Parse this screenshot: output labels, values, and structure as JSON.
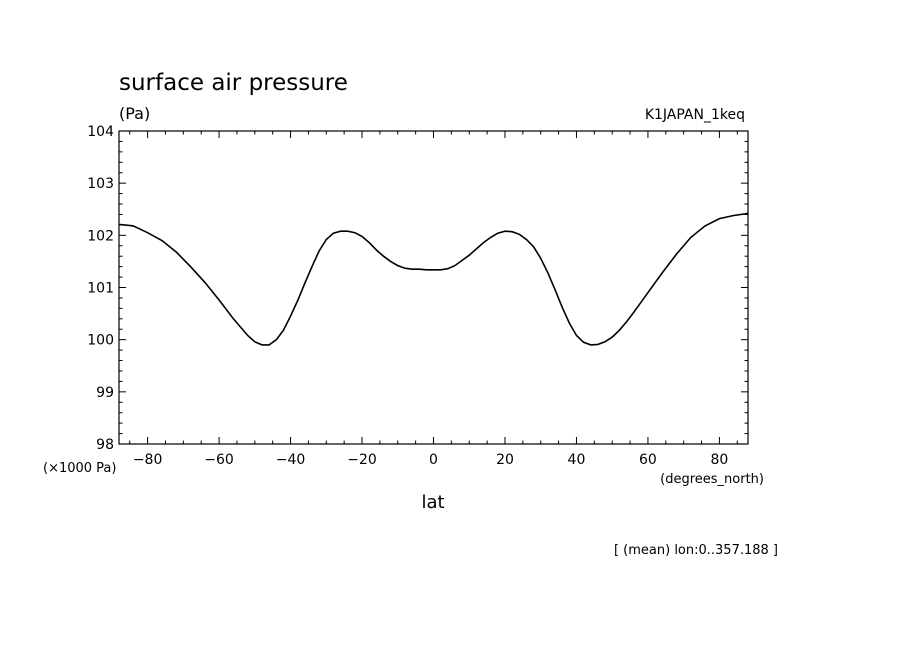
{
  "chart_data": {
    "type": "line",
    "title": "surface air pressure",
    "units": "(Pa)",
    "scale_note": "(×1000 Pa)",
    "dataset_label": "K1JAPAN_1keq",
    "xlabel": "lat",
    "xunits": "(degrees_north)",
    "footnote": "[ (mean) lon:0..357.188 ]",
    "xlim": [
      -88,
      88
    ],
    "ylim": [
      98,
      104
    ],
    "xticks": [
      -80,
      -60,
      -40,
      -20,
      0,
      20,
      40,
      60,
      80
    ],
    "xtick_labels": [
      "−80",
      "−60",
      "−40",
      "−20",
      "0",
      "20",
      "40",
      "60",
      "80"
    ],
    "yticks": [
      98,
      99,
      100,
      101,
      102,
      103,
      104
    ],
    "ytick_labels": [
      "98",
      "99",
      "100",
      "101",
      "102",
      "103",
      "104"
    ],
    "grid": false,
    "series": [
      {
        "x": [
          -88,
          -84,
          -80,
          -76,
          -72,
          -68,
          -64,
          -60,
          -56,
          -52,
          -50,
          -48,
          -46,
          -44,
          -42,
          -40,
          -38,
          -36,
          -34,
          -32,
          -30,
          -28,
          -26,
          -24,
          -22,
          -20,
          -18,
          -16,
          -14,
          -12,
          -10,
          -8,
          -6,
          -4,
          -2,
          0,
          2,
          4,
          6,
          8,
          10,
          12,
          14,
          16,
          18,
          20,
          22,
          24,
          26,
          28,
          30,
          32,
          34,
          36,
          38,
          40,
          42,
          44,
          46,
          48,
          50,
          52,
          54,
          56,
          60,
          64,
          68,
          72,
          76,
          80,
          84,
          88
        ],
        "y": [
          102.21,
          102.18,
          102.05,
          101.9,
          101.68,
          101.4,
          101.1,
          100.76,
          100.4,
          100.08,
          99.96,
          99.9,
          99.9,
          100.0,
          100.18,
          100.45,
          100.75,
          101.08,
          101.4,
          101.7,
          101.92,
          102.04,
          102.08,
          102.08,
          102.05,
          101.98,
          101.86,
          101.72,
          101.6,
          101.5,
          101.42,
          101.37,
          101.35,
          101.35,
          101.34,
          101.34,
          101.34,
          101.36,
          101.42,
          101.52,
          101.62,
          101.74,
          101.86,
          101.96,
          102.04,
          102.08,
          102.07,
          102.02,
          101.92,
          101.78,
          101.56,
          101.28,
          100.96,
          100.62,
          100.32,
          100.08,
          99.95,
          99.9,
          99.91,
          99.96,
          100.05,
          100.18,
          100.34,
          100.52,
          100.9,
          101.28,
          101.64,
          101.96,
          102.18,
          102.32,
          102.38,
          102.42
        ]
      }
    ]
  }
}
